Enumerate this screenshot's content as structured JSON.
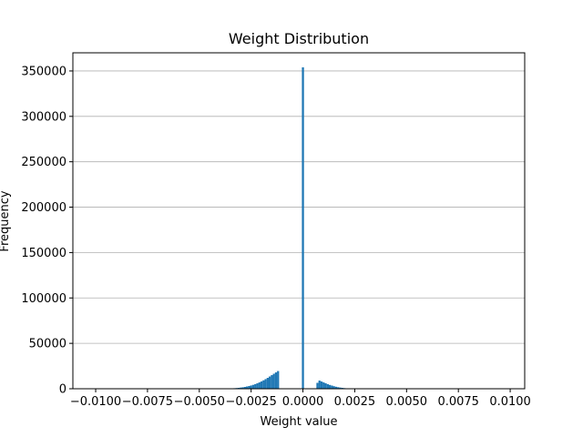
{
  "chart_data": {
    "type": "bar",
    "title": "Weight Distribution",
    "xlabel": "Weight value",
    "ylabel": "Frequency",
    "xlim": [
      -0.0111,
      0.0107
    ],
    "ylim": [
      0,
      370000
    ],
    "grid": "horizontal",
    "bar_color": "#1f77b4",
    "bin_width": 0.0001,
    "x_ticks": [
      -0.01,
      -0.0075,
      -0.005,
      -0.0025,
      0,
      0.0025,
      0.005,
      0.0075,
      0.01
    ],
    "x_tick_labels": [
      "−0.0100",
      "−0.0075",
      "−0.0050",
      "−0.0025",
      "0.0000",
      "0.0025",
      "0.0050",
      "0.0075",
      "0.0100"
    ],
    "y_ticks": [
      0,
      50000,
      100000,
      150000,
      200000,
      250000,
      300000,
      350000
    ],
    "y_tick_labels": [
      "0",
      "50000",
      "100000",
      "150000",
      "200000",
      "250000",
      "300000",
      "350000"
    ],
    "bins": [
      {
        "x": -0.0035,
        "y": 300
      },
      {
        "x": -0.0034,
        "y": 400
      },
      {
        "x": -0.0033,
        "y": 600
      },
      {
        "x": -0.0032,
        "y": 800
      },
      {
        "x": -0.0031,
        "y": 1000
      },
      {
        "x": -0.003,
        "y": 1300
      },
      {
        "x": -0.0029,
        "y": 1600
      },
      {
        "x": -0.0028,
        "y": 2000
      },
      {
        "x": -0.0027,
        "y": 2500
      },
      {
        "x": -0.0026,
        "y": 3000
      },
      {
        "x": -0.0025,
        "y": 3600
      },
      {
        "x": -0.0024,
        "y": 4300
      },
      {
        "x": -0.0023,
        "y": 5100
      },
      {
        "x": -0.0022,
        "y": 6000
      },
      {
        "x": -0.0021,
        "y": 7000
      },
      {
        "x": -0.002,
        "y": 8100
      },
      {
        "x": -0.0019,
        "y": 9300
      },
      {
        "x": -0.0018,
        "y": 10600
      },
      {
        "x": -0.0017,
        "y": 12000
      },
      {
        "x": -0.0016,
        "y": 13500
      },
      {
        "x": -0.0015,
        "y": 15000
      },
      {
        "x": -0.0014,
        "y": 16500
      },
      {
        "x": -0.0013,
        "y": 18000
      },
      {
        "x": -0.0012,
        "y": 19500
      },
      {
        "x": 0,
        "y": 354000
      },
      {
        "x": 0.0007,
        "y": 6500
      },
      {
        "x": 0.0008,
        "y": 9000
      },
      {
        "x": 0.0009,
        "y": 8000
      },
      {
        "x": 0.001,
        "y": 7000
      },
      {
        "x": 0.0011,
        "y": 6000
      },
      {
        "x": 0.0012,
        "y": 5000
      },
      {
        "x": 0.0013,
        "y": 4200
      },
      {
        "x": 0.0014,
        "y": 3500
      },
      {
        "x": 0.0015,
        "y": 2800
      },
      {
        "x": 0.0016,
        "y": 2200
      },
      {
        "x": 0.0017,
        "y": 1700
      },
      {
        "x": 0.0018,
        "y": 1300
      },
      {
        "x": 0.0019,
        "y": 1000
      },
      {
        "x": 0.002,
        "y": 700
      },
      {
        "x": 0.0021,
        "y": 500
      },
      {
        "x": 0.0022,
        "y": 350
      },
      {
        "x": 0.0023,
        "y": 250
      }
    ]
  }
}
